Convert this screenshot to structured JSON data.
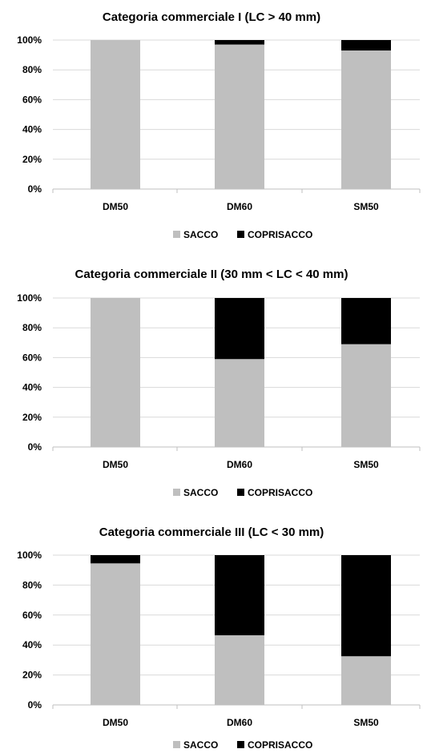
{
  "chart_data": [
    {
      "type": "bar",
      "stacked": true,
      "title": "Categoria commerciale I (LC > 40 mm)",
      "categories": [
        "DM50",
        "DM60",
        "SM50"
      ],
      "ylim": [
        0,
        100
      ],
      "yticks": [
        "0%",
        "20%",
        "40%",
        "60%",
        "80%",
        "100%"
      ],
      "grid": true,
      "legend_position": "bottom",
      "series": [
        {
          "name": "SACCO",
          "color": "#bfbfbf",
          "values": [
            100,
            97,
            93
          ]
        },
        {
          "name": "COPRISACCO",
          "color": "#000000",
          "values": [
            0,
            3,
            7
          ]
        }
      ]
    },
    {
      "type": "bar",
      "stacked": true,
      "title": "Categoria commerciale II (30 mm < LC < 40 mm)",
      "categories": [
        "DM50",
        "DM60",
        "SM50"
      ],
      "ylim": [
        0,
        100
      ],
      "yticks": [
        "0%",
        "20%",
        "40%",
        "60%",
        "80%",
        "100%"
      ],
      "grid": true,
      "legend_position": "bottom",
      "series": [
        {
          "name": "SACCO",
          "color": "#bfbfbf",
          "values": [
            100,
            59,
            69
          ]
        },
        {
          "name": "COPRISACCO",
          "color": "#000000",
          "values": [
            0,
            41,
            31
          ]
        }
      ]
    },
    {
      "type": "bar",
      "stacked": true,
      "title": "Categoria commerciale III (LC < 30 mm)",
      "categories": [
        "DM50",
        "DM60",
        "SM50"
      ],
      "ylim": [
        0,
        100
      ],
      "yticks": [
        "0%",
        "20%",
        "40%",
        "60%",
        "80%",
        "100%"
      ],
      "grid": true,
      "legend_position": "bottom",
      "series": [
        {
          "name": "SACCO",
          "color": "#bfbfbf",
          "values": [
            94.5,
            46.5,
            32.5
          ]
        },
        {
          "name": "COPRISACCO",
          "color": "#000000",
          "values": [
            5.5,
            53.5,
            67.5
          ]
        }
      ]
    }
  ]
}
